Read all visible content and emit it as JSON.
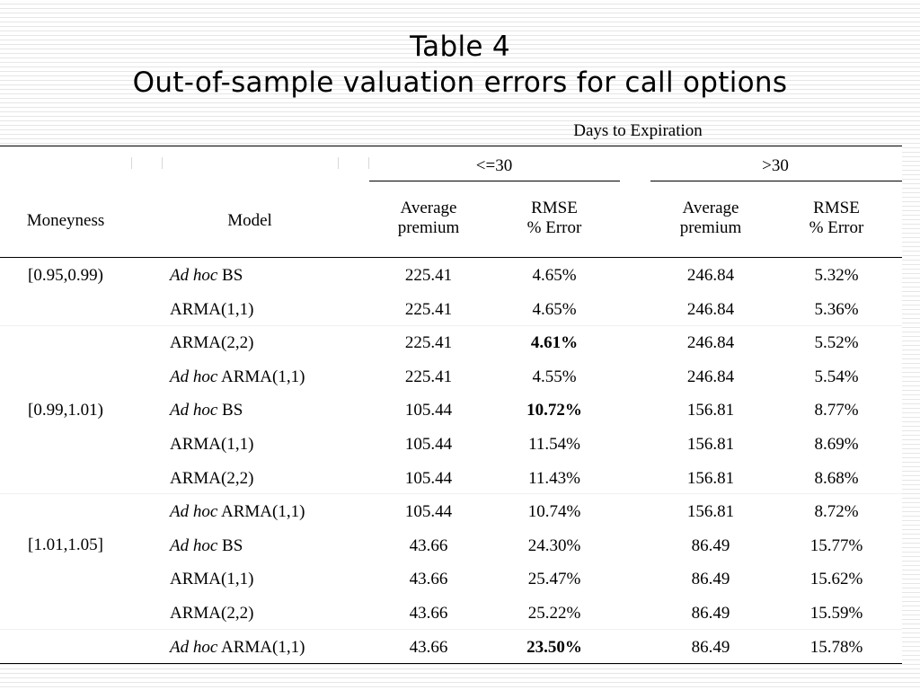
{
  "title_line1": "Table 4",
  "title_line2": "Out-of-sample valuation errors for call options",
  "group_header": "Days to Expiration",
  "groups": [
    "<=30",
    ">30"
  ],
  "headers": {
    "moneyness": "Moneyness",
    "model": "Model",
    "avg_premium_1": "Average",
    "avg_premium_2": "premium",
    "rmse_1": "RMSE",
    "rmse_2": "% Error"
  },
  "moneyness_labels": [
    "[0.95,0.99)",
    "[0.99,1.01)",
    "[1.01,1.05]"
  ],
  "rows": [
    {
      "model_italic": "Ad hoc",
      "model_rest": " BS",
      "avg1": "225.41",
      "rmse1": "4.65%",
      "bold1": false,
      "avg2": "246.84",
      "rmse2": "5.32%"
    },
    {
      "model_italic": "",
      "model_rest": "ARMA(1,1)",
      "avg1": "225.41",
      "rmse1": "4.65%",
      "bold1": false,
      "avg2": "246.84",
      "rmse2": "5.36%"
    },
    {
      "model_italic": "",
      "model_rest": "ARMA(2,2)",
      "avg1": "225.41",
      "rmse1": "4.61%",
      "bold1": true,
      "avg2": "246.84",
      "rmse2": "5.52%"
    },
    {
      "model_italic": "Ad hoc",
      "model_rest": " ARMA(1,1)",
      "avg1": "225.41",
      "rmse1": "4.55%",
      "bold1": false,
      "avg2": "246.84",
      "rmse2": "5.54%"
    },
    {
      "model_italic": "Ad hoc",
      "model_rest": " BS",
      "avg1": "105.44",
      "rmse1": "10.72%",
      "bold1": true,
      "avg2": "156.81",
      "rmse2": "8.77%"
    },
    {
      "model_italic": "",
      "model_rest": "ARMA(1,1)",
      "avg1": "105.44",
      "rmse1": "11.54%",
      "bold1": false,
      "avg2": "156.81",
      "rmse2": "8.69%"
    },
    {
      "model_italic": "",
      "model_rest": "ARMA(2,2)",
      "avg1": "105.44",
      "rmse1": "11.43%",
      "bold1": false,
      "avg2": "156.81",
      "rmse2": "8.68%"
    },
    {
      "model_italic": "Ad hoc",
      "model_rest": " ARMA(1,1)",
      "avg1": "105.44",
      "rmse1": "10.74%",
      "bold1": false,
      "avg2": "156.81",
      "rmse2": "8.72%"
    },
    {
      "model_italic": "Ad hoc",
      "model_rest": " BS",
      "avg1": "43.66",
      "rmse1": "24.30%",
      "bold1": false,
      "avg2": "86.49",
      "rmse2": "15.77%"
    },
    {
      "model_italic": "",
      "model_rest": "ARMA(1,1)",
      "avg1": "43.66",
      "rmse1": "25.47%",
      "bold1": false,
      "avg2": "86.49",
      "rmse2": "15.62%"
    },
    {
      "model_italic": "",
      "model_rest": "ARMA(2,2)",
      "avg1": "43.66",
      "rmse1": "25.22%",
      "bold1": false,
      "avg2": "86.49",
      "rmse2": "15.59%"
    },
    {
      "model_italic": "Ad hoc",
      "model_rest": " ARMA(1,1)",
      "avg1": "43.66",
      "rmse1": "23.50%",
      "bold1": true,
      "avg2": "86.49",
      "rmse2": "15.78%"
    }
  ]
}
